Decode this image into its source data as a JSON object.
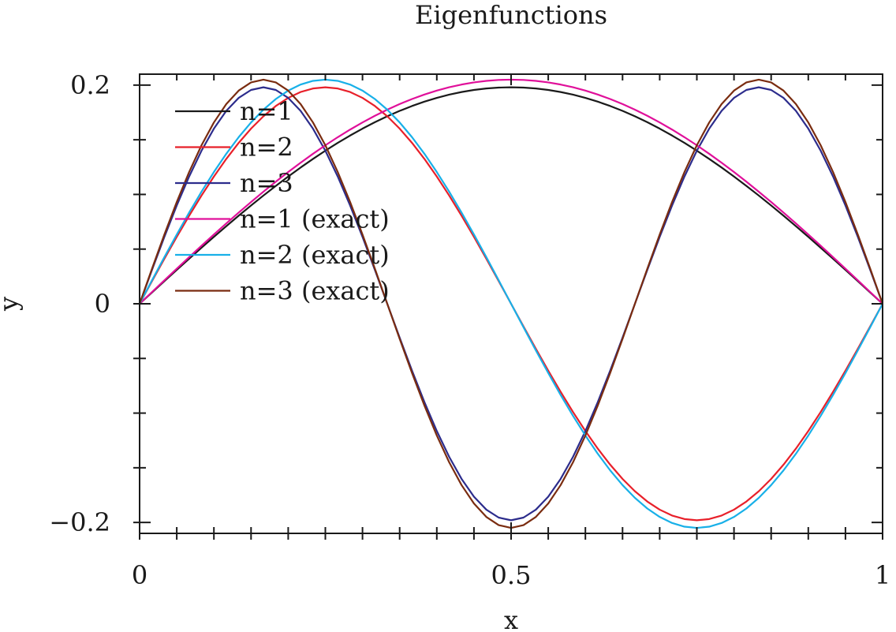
{
  "chart_data": {
    "type": "line",
    "title": "Eigenfunctions",
    "xlabel": "x",
    "ylabel": "y",
    "xlim": [
      0,
      1
    ],
    "ylim": [
      -0.21,
      0.21
    ],
    "x_ticks": [
      {
        "value": 0,
        "label": "0"
      },
      {
        "value": 0.5,
        "label": "0.5"
      },
      {
        "value": 1,
        "label": "1"
      }
    ],
    "y_ticks": [
      {
        "value": 0.2,
        "label": "0.2"
      },
      {
        "value": 0,
        "label": "0"
      },
      {
        "value": -0.2,
        "label": "−0.2"
      }
    ],
    "x_minor_step": 0.05,
    "y_minor_step": 0.05,
    "grid": false,
    "legend_position": "top-left",
    "amplitude_approx": 0.2,
    "samples": 60,
    "series": [
      {
        "name": "n=1",
        "mode": 1,
        "amplitude": 0.198,
        "color": "#1a1a1a"
      },
      {
        "name": "n=2",
        "mode": 2,
        "amplitude": 0.198,
        "color": "#e8202a"
      },
      {
        "name": "n=3",
        "mode": 3,
        "amplitude": 0.198,
        "color": "#2c2c8c"
      },
      {
        "name": "n=1 (exact)",
        "mode": 1,
        "amplitude": 0.205,
        "color": "#e0109a"
      },
      {
        "name": "n=2 (exact)",
        "mode": 2,
        "amplitude": 0.205,
        "color": "#18b0e8"
      },
      {
        "name": "n=3 (exact)",
        "mode": 3,
        "amplitude": 0.205,
        "color": "#7a2c10"
      }
    ]
  }
}
